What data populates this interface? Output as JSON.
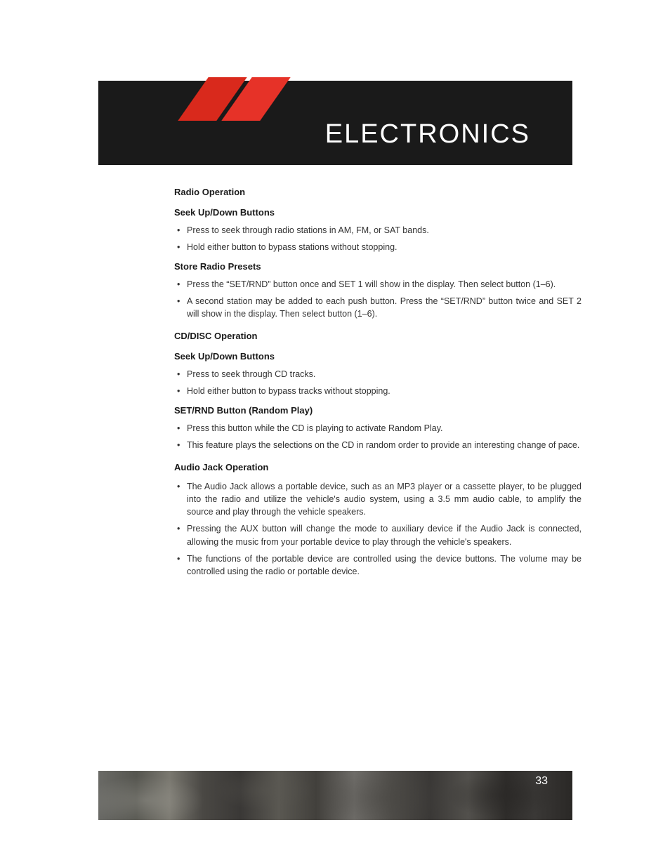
{
  "header": {
    "title": "ELECTRONICS",
    "banner_bg": "#1a1a1a",
    "title_color": "#ffffff",
    "stripe_colors": [
      "#d9291c",
      "#e63228"
    ],
    "title_fontsize": 38
  },
  "sections": [
    {
      "heading": "Radio Operation",
      "subs": [
        {
          "heading": "Seek Up/Down Buttons",
          "items": [
            "Press to seek through radio stations in AM, FM, or SAT bands.",
            "Hold either button to bypass stations without stopping."
          ]
        },
        {
          "heading": "Store Radio Presets",
          "items": [
            "Press the “SET/RND” button once and SET 1 will show in the display. Then select button (1–6).",
            "A second station may be added to each push button. Press the “SET/RND” button twice and SET 2 will show in the display. Then select button (1–6)."
          ]
        }
      ]
    },
    {
      "heading": "CD/DISC Operation",
      "subs": [
        {
          "heading": "Seek Up/Down Buttons",
          "items": [
            "Press to seek through CD tracks.",
            "Hold either button to bypass tracks without stopping."
          ]
        },
        {
          "heading": "SET/RND Button (Random Play)",
          "items": [
            "Press this button while the CD is playing to activate Random Play.",
            "This feature plays the selections on the CD in random order to provide an interesting change of pace."
          ]
        }
      ]
    },
    {
      "heading": "Audio Jack Operation",
      "subs": [
        {
          "heading": null,
          "items": [
            "The Audio Jack allows a portable device, such as an MP3 player or a cassette player, to be plugged into the radio and utilize the vehicle's audio system, using a 3.5 mm audio cable, to amplify the source and play through the vehicle speakers.",
            "Pressing the AUX button will change the mode to auxiliary device if the Audio Jack is connected, allowing the music from your portable device to play through the vehicle's speakers.",
            "The functions of the portable device are controlled using the device buttons. The volume may be controlled using the radio or portable device."
          ]
        }
      ]
    }
  ],
  "footer": {
    "page_number": "33",
    "page_number_color": "#ffffff"
  },
  "colors": {
    "page_bg": "#ffffff",
    "text": "#333333",
    "heading": "#1a1a1a"
  }
}
